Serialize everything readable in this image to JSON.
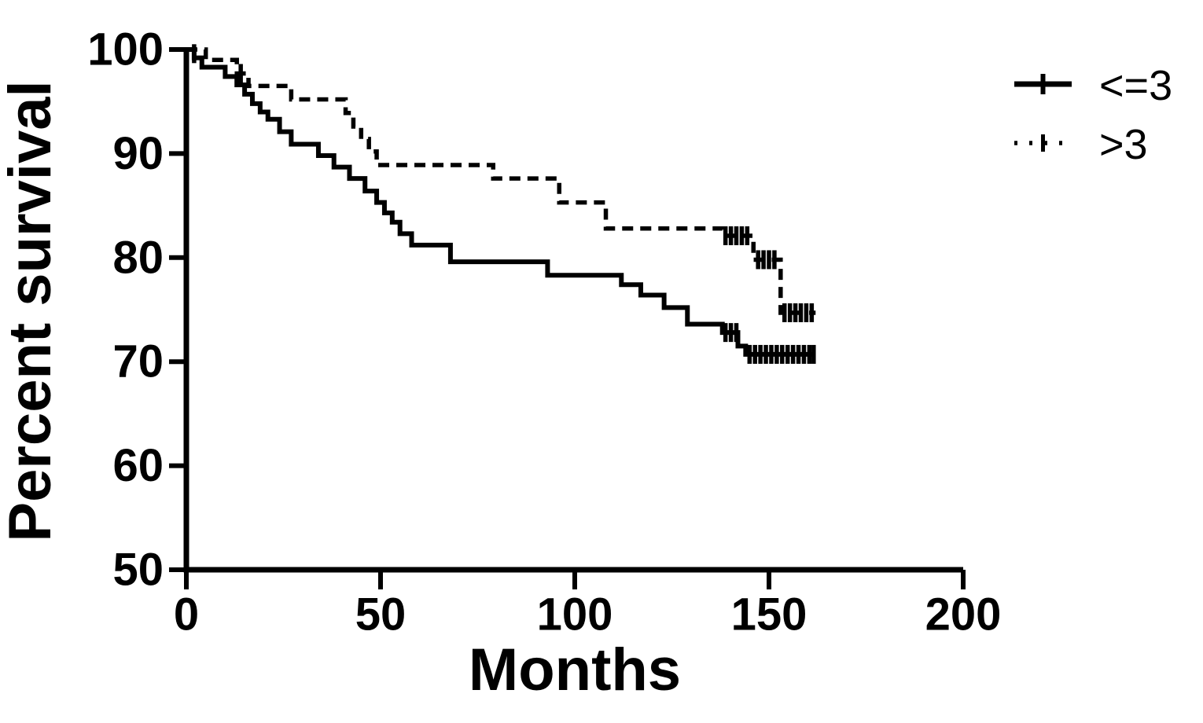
{
  "figure": {
    "background_color": "#ffffff",
    "line_color": "#000000"
  },
  "chart_data": {
    "type": "line",
    "subtype": "kaplan-meier-step-survival",
    "title": "",
    "xlabel": "Months",
    "ylabel": "Percent survival",
    "xlim": [
      0,
      200
    ],
    "ylim": [
      50,
      100
    ],
    "xticks": [
      0,
      50,
      100,
      150,
      200
    ],
    "yticks": [
      100,
      90,
      80,
      70,
      60,
      50
    ],
    "grid": false,
    "legend_position": "top-right",
    "series": [
      {
        "name": "<=3",
        "style": "solid",
        "steps": [
          [
            0,
            100
          ],
          [
            2,
            99.2
          ],
          [
            4,
            98.3
          ],
          [
            10,
            97.4
          ],
          [
            13,
            96.6
          ],
          [
            15,
            95.7
          ],
          [
            17,
            94.8
          ],
          [
            19,
            94.0
          ],
          [
            21,
            93.3
          ],
          [
            24,
            92.1
          ],
          [
            27,
            90.9
          ],
          [
            34,
            89.8
          ],
          [
            38,
            88.7
          ],
          [
            42,
            87.6
          ],
          [
            46,
            86.4
          ],
          [
            49,
            85.3
          ],
          [
            51,
            84.3
          ],
          [
            53,
            83.4
          ],
          [
            55,
            82.3
          ],
          [
            58,
            81.2
          ],
          [
            68,
            79.6
          ],
          [
            93,
            78.3
          ],
          [
            112,
            77.4
          ],
          [
            117,
            76.4
          ],
          [
            123,
            75.2
          ],
          [
            129,
            73.6
          ],
          [
            138,
            72.8
          ],
          [
            142,
            71.5
          ],
          [
            144,
            70.7
          ],
          [
            162,
            70.7
          ]
        ],
        "censor_marks": [
          [
            2,
            99.6
          ],
          [
            138.8,
            72.8
          ],
          [
            140.2,
            72.8
          ],
          [
            141.6,
            72.8
          ],
          [
            145,
            70.7
          ],
          [
            146.4,
            70.7
          ],
          [
            147.8,
            70.7
          ],
          [
            149.2,
            70.7
          ],
          [
            150.6,
            70.7
          ],
          [
            152,
            70.7
          ],
          [
            153.4,
            70.7
          ],
          [
            154.8,
            70.7
          ],
          [
            156.2,
            70.7
          ],
          [
            157.6,
            70.7
          ],
          [
            159,
            70.7
          ],
          [
            160.4,
            70.7
          ],
          [
            161.5,
            70.7
          ]
        ]
      },
      {
        "name": ">3",
        "style": "dashed",
        "steps": [
          [
            0,
            100
          ],
          [
            5,
            99.0
          ],
          [
            13,
            97.7
          ],
          [
            16,
            96.5
          ],
          [
            27,
            95.2
          ],
          [
            41,
            93.9
          ],
          [
            43,
            92.6
          ],
          [
            45,
            91.4
          ],
          [
            47,
            90.2
          ],
          [
            49,
            88.9
          ],
          [
            79,
            87.6
          ],
          [
            96,
            85.3
          ],
          [
            108,
            82.8
          ],
          [
            138,
            82.1
          ],
          [
            146,
            79.8
          ],
          [
            153,
            74.7
          ],
          [
            162,
            74.7
          ]
        ],
        "censor_marks": [
          [
            14,
            97.7
          ],
          [
            138.8,
            82.1
          ],
          [
            140.2,
            82.1
          ],
          [
            141.6,
            82.1
          ],
          [
            143,
            82.1
          ],
          [
            144.4,
            82.1
          ],
          [
            147.2,
            79.8
          ],
          [
            148.6,
            79.8
          ],
          [
            150,
            79.8
          ],
          [
            151.4,
            79.8
          ],
          [
            154,
            74.7
          ],
          [
            155.4,
            74.7
          ],
          [
            156.8,
            74.7
          ],
          [
            158.2,
            74.7
          ],
          [
            159.6,
            74.7
          ],
          [
            161,
            74.7
          ]
        ]
      }
    ]
  }
}
